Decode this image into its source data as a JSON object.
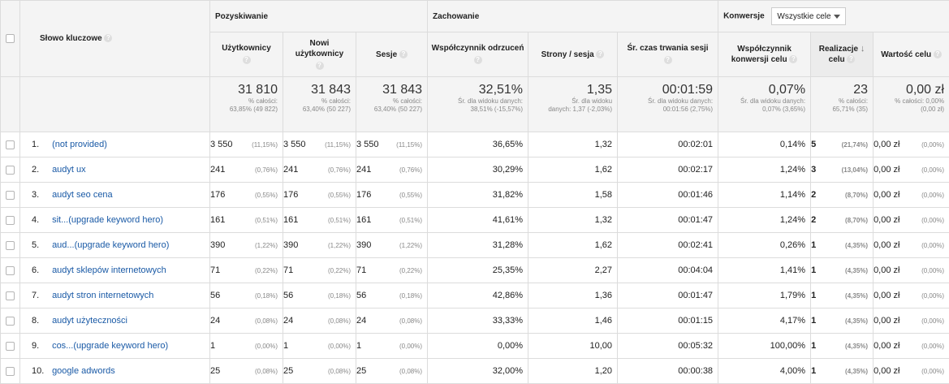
{
  "groups": {
    "keyword_label": "Słowo kluczowe",
    "acquisition": "Pozyskiwanie",
    "behavior": "Zachowanie",
    "conversions": "Konwersje",
    "goal_select": "Wszystkie cele"
  },
  "columns": {
    "users": "Użytkownicy",
    "new_users_line1": "Nowi",
    "new_users_line2": "użytkownicy",
    "sessions": "Sesje",
    "bounce": "Współczynnik odrzuceń",
    "pages": "Strony / sesja",
    "duration": "Śr. czas trwania sesji",
    "conv_line1": "Współczynnik",
    "conv_line2": "konwersji celu",
    "goals_line1": "Realizacje",
    "goals_line2": "celu",
    "value": "Wartość celu"
  },
  "totals": {
    "users": {
      "v": "31 810",
      "l1": "% całości:",
      "l2": "63,85% (49 822)"
    },
    "new_users": {
      "v": "31 843",
      "l1": "% całości:",
      "l2": "63,40% (50 227)"
    },
    "sessions": {
      "v": "31 843",
      "l1": "% całości:",
      "l2": "63,40% (50 227)"
    },
    "bounce": {
      "v": "32,51%",
      "l1": "Śr. dla widoku danych:",
      "l2": "38,51% (-15,57%)"
    },
    "pages": {
      "v": "1,35",
      "l1": "Śr. dla widoku",
      "l2": "danych: 1,37 (-2,03%)"
    },
    "duration": {
      "v": "00:01:59",
      "l1": "Śr. dla widoku danych:",
      "l2": "00:01:56 (2,75%)"
    },
    "conv": {
      "v": "0,07%",
      "l1": "Śr. dla widoku danych:",
      "l2": "0,07% (3,65%)"
    },
    "goals": {
      "v": "23",
      "l1": "% całości:",
      "l2": "65,71% (35)"
    },
    "value": {
      "v": "0,00 zł",
      "l1": "% całości: 0,00%",
      "l2": "(0,00 zł)"
    }
  },
  "rows": [
    {
      "idx": "1.",
      "kw": "(not provided)",
      "u": "3 550",
      "up": "(11,15%)",
      "n": "3 550",
      "np": "(11,15%)",
      "s": "3 550",
      "sp": "(11,15%)",
      "b": "36,65%",
      "pg": "1,32",
      "d": "00:02:01",
      "c": "0,14%",
      "g": "5",
      "gp": "(21,74%)",
      "val": "0,00 zł",
      "valp": "(0,00%)"
    },
    {
      "idx": "2.",
      "kw": "audyt ux",
      "u": "241",
      "up": "(0,76%)",
      "n": "241",
      "np": "(0,76%)",
      "s": "241",
      "sp": "(0,76%)",
      "b": "30,29%",
      "pg": "1,62",
      "d": "00:02:17",
      "c": "1,24%",
      "g": "3",
      "gp": "(13,04%)",
      "val": "0,00 zł",
      "valp": "(0,00%)"
    },
    {
      "idx": "3.",
      "kw": "audyt seo cena",
      "u": "176",
      "up": "(0,55%)",
      "n": "176",
      "np": "(0,55%)",
      "s": "176",
      "sp": "(0,55%)",
      "b": "31,82%",
      "pg": "1,58",
      "d": "00:01:46",
      "c": "1,14%",
      "g": "2",
      "gp": "(8,70%)",
      "val": "0,00 zł",
      "valp": "(0,00%)"
    },
    {
      "idx": "4.",
      "kw": "sit...(upgrade keyword hero)",
      "u": "161",
      "up": "(0,51%)",
      "n": "161",
      "np": "(0,51%)",
      "s": "161",
      "sp": "(0,51%)",
      "b": "41,61%",
      "pg": "1,32",
      "d": "00:01:47",
      "c": "1,24%",
      "g": "2",
      "gp": "(8,70%)",
      "val": "0,00 zł",
      "valp": "(0,00%)"
    },
    {
      "idx": "5.",
      "kw": "aud...(upgrade keyword hero)",
      "u": "390",
      "up": "(1,22%)",
      "n": "390",
      "np": "(1,22%)",
      "s": "390",
      "sp": "(1,22%)",
      "b": "31,28%",
      "pg": "1,62",
      "d": "00:02:41",
      "c": "0,26%",
      "g": "1",
      "gp": "(4,35%)",
      "val": "0,00 zł",
      "valp": "(0,00%)"
    },
    {
      "idx": "6.",
      "kw": "audyt sklepów internetowych",
      "u": "71",
      "up": "(0,22%)",
      "n": "71",
      "np": "(0,22%)",
      "s": "71",
      "sp": "(0,22%)",
      "b": "25,35%",
      "pg": "2,27",
      "d": "00:04:04",
      "c": "1,41%",
      "g": "1",
      "gp": "(4,35%)",
      "val": "0,00 zł",
      "valp": "(0,00%)"
    },
    {
      "idx": "7.",
      "kw": "audyt stron internetowych",
      "u": "56",
      "up": "(0,18%)",
      "n": "56",
      "np": "(0,18%)",
      "s": "56",
      "sp": "(0,18%)",
      "b": "42,86%",
      "pg": "1,36",
      "d": "00:01:47",
      "c": "1,79%",
      "g": "1",
      "gp": "(4,35%)",
      "val": "0,00 zł",
      "valp": "(0,00%)"
    },
    {
      "idx": "8.",
      "kw": "audyt użyteczności",
      "u": "24",
      "up": "(0,08%)",
      "n": "24",
      "np": "(0,08%)",
      "s": "24",
      "sp": "(0,08%)",
      "b": "33,33%",
      "pg": "1,46",
      "d": "00:01:15",
      "c": "4,17%",
      "g": "1",
      "gp": "(4,35%)",
      "val": "0,00 zł",
      "valp": "(0,00%)"
    },
    {
      "idx": "9.",
      "kw": "cos...(upgrade keyword hero)",
      "u": "1",
      "up": "(0,00%)",
      "n": "1",
      "np": "(0,00%)",
      "s": "1",
      "sp": "(0,00%)",
      "b": "0,00%",
      "pg": "10,00",
      "d": "00:05:32",
      "c": "100,00%",
      "g": "1",
      "gp": "(4,35%)",
      "val": "0,00 zł",
      "valp": "(0,00%)"
    },
    {
      "idx": "10.",
      "kw": "google adwords",
      "u": "25",
      "up": "(0,08%)",
      "n": "25",
      "np": "(0,08%)",
      "s": "25",
      "sp": "(0,08%)",
      "b": "32,00%",
      "pg": "1,20",
      "d": "00:00:38",
      "c": "4,00%",
      "g": "1",
      "gp": "(4,35%)",
      "val": "0,00 zł",
      "valp": "(0,00%)"
    }
  ]
}
